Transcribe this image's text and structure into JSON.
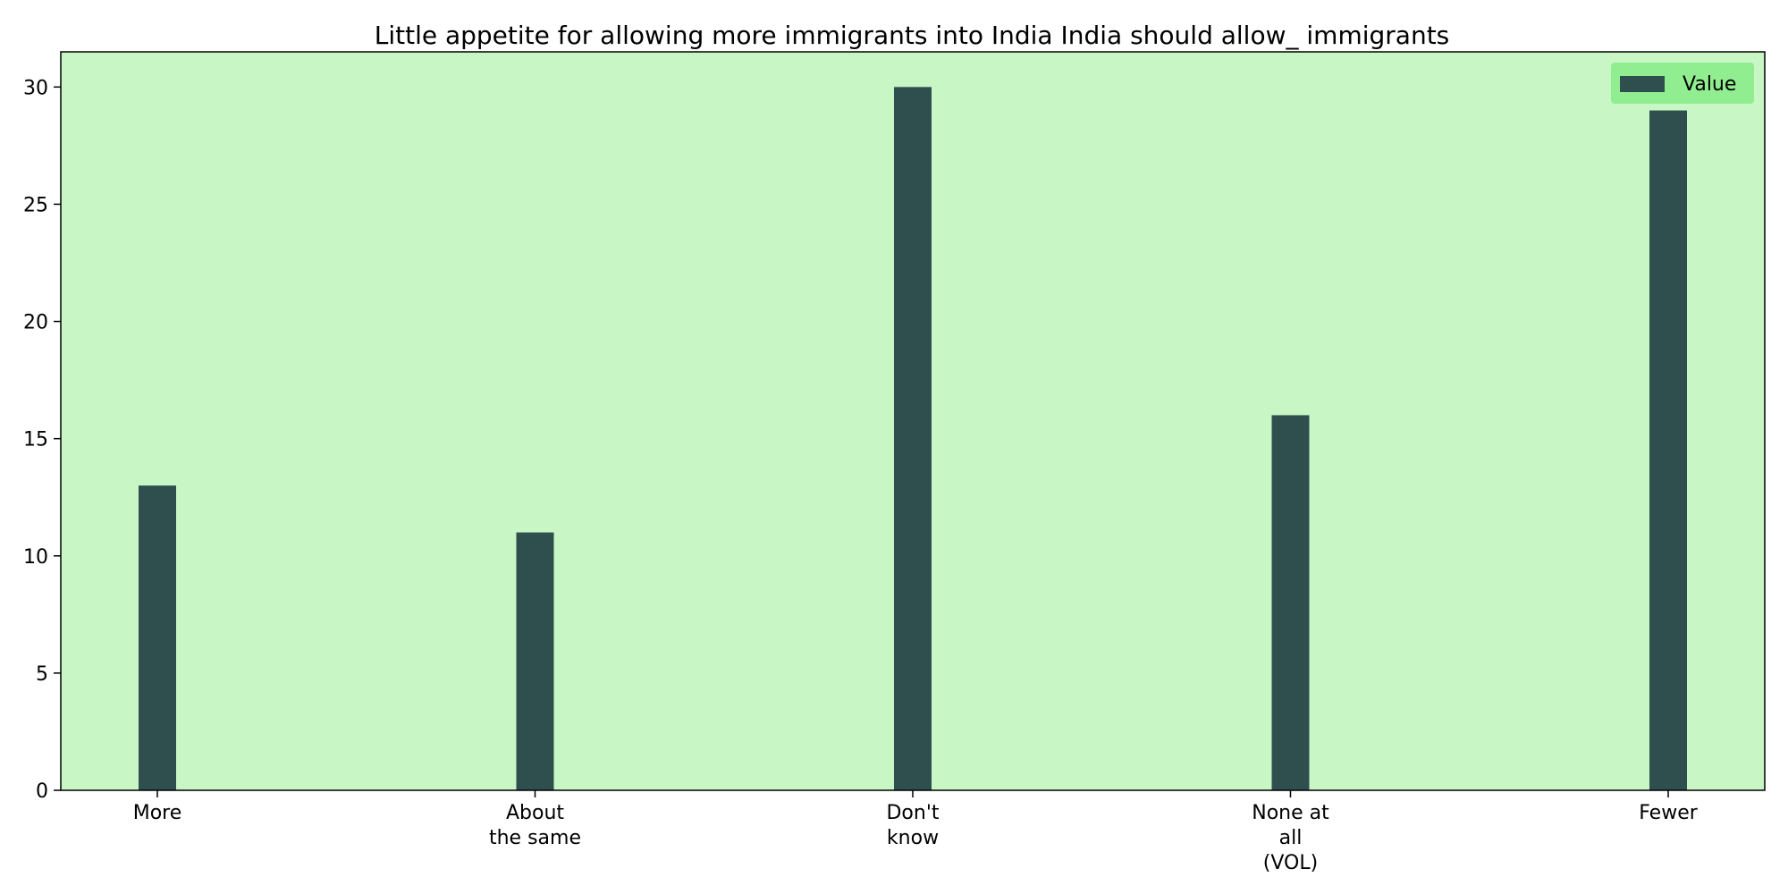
{
  "chart_data": {
    "type": "bar",
    "title": "Little appetite for allowing more immigrants into India India should allow_ immigrants",
    "xlabel": "",
    "ylabel": "",
    "categories": [
      [
        "More"
      ],
      [
        "About",
        "the same"
      ],
      [
        "Don't",
        "know"
      ],
      [
        "None at",
        "all",
        "(VOL)"
      ],
      [
        "Fewer"
      ]
    ],
    "series": [
      {
        "name": "Value",
        "values": [
          13,
          11,
          30,
          16,
          29
        ]
      }
    ],
    "ylim": [
      0,
      31.5
    ],
    "yticks": [
      0,
      5,
      10,
      15,
      20,
      25,
      30
    ],
    "grid": false,
    "legend_position": "top-right",
    "colors": {
      "plot_background": "#c8f7c5",
      "bar": "#2f4f4f",
      "legend_background": "#90ee90",
      "axis": "#000000"
    }
  }
}
